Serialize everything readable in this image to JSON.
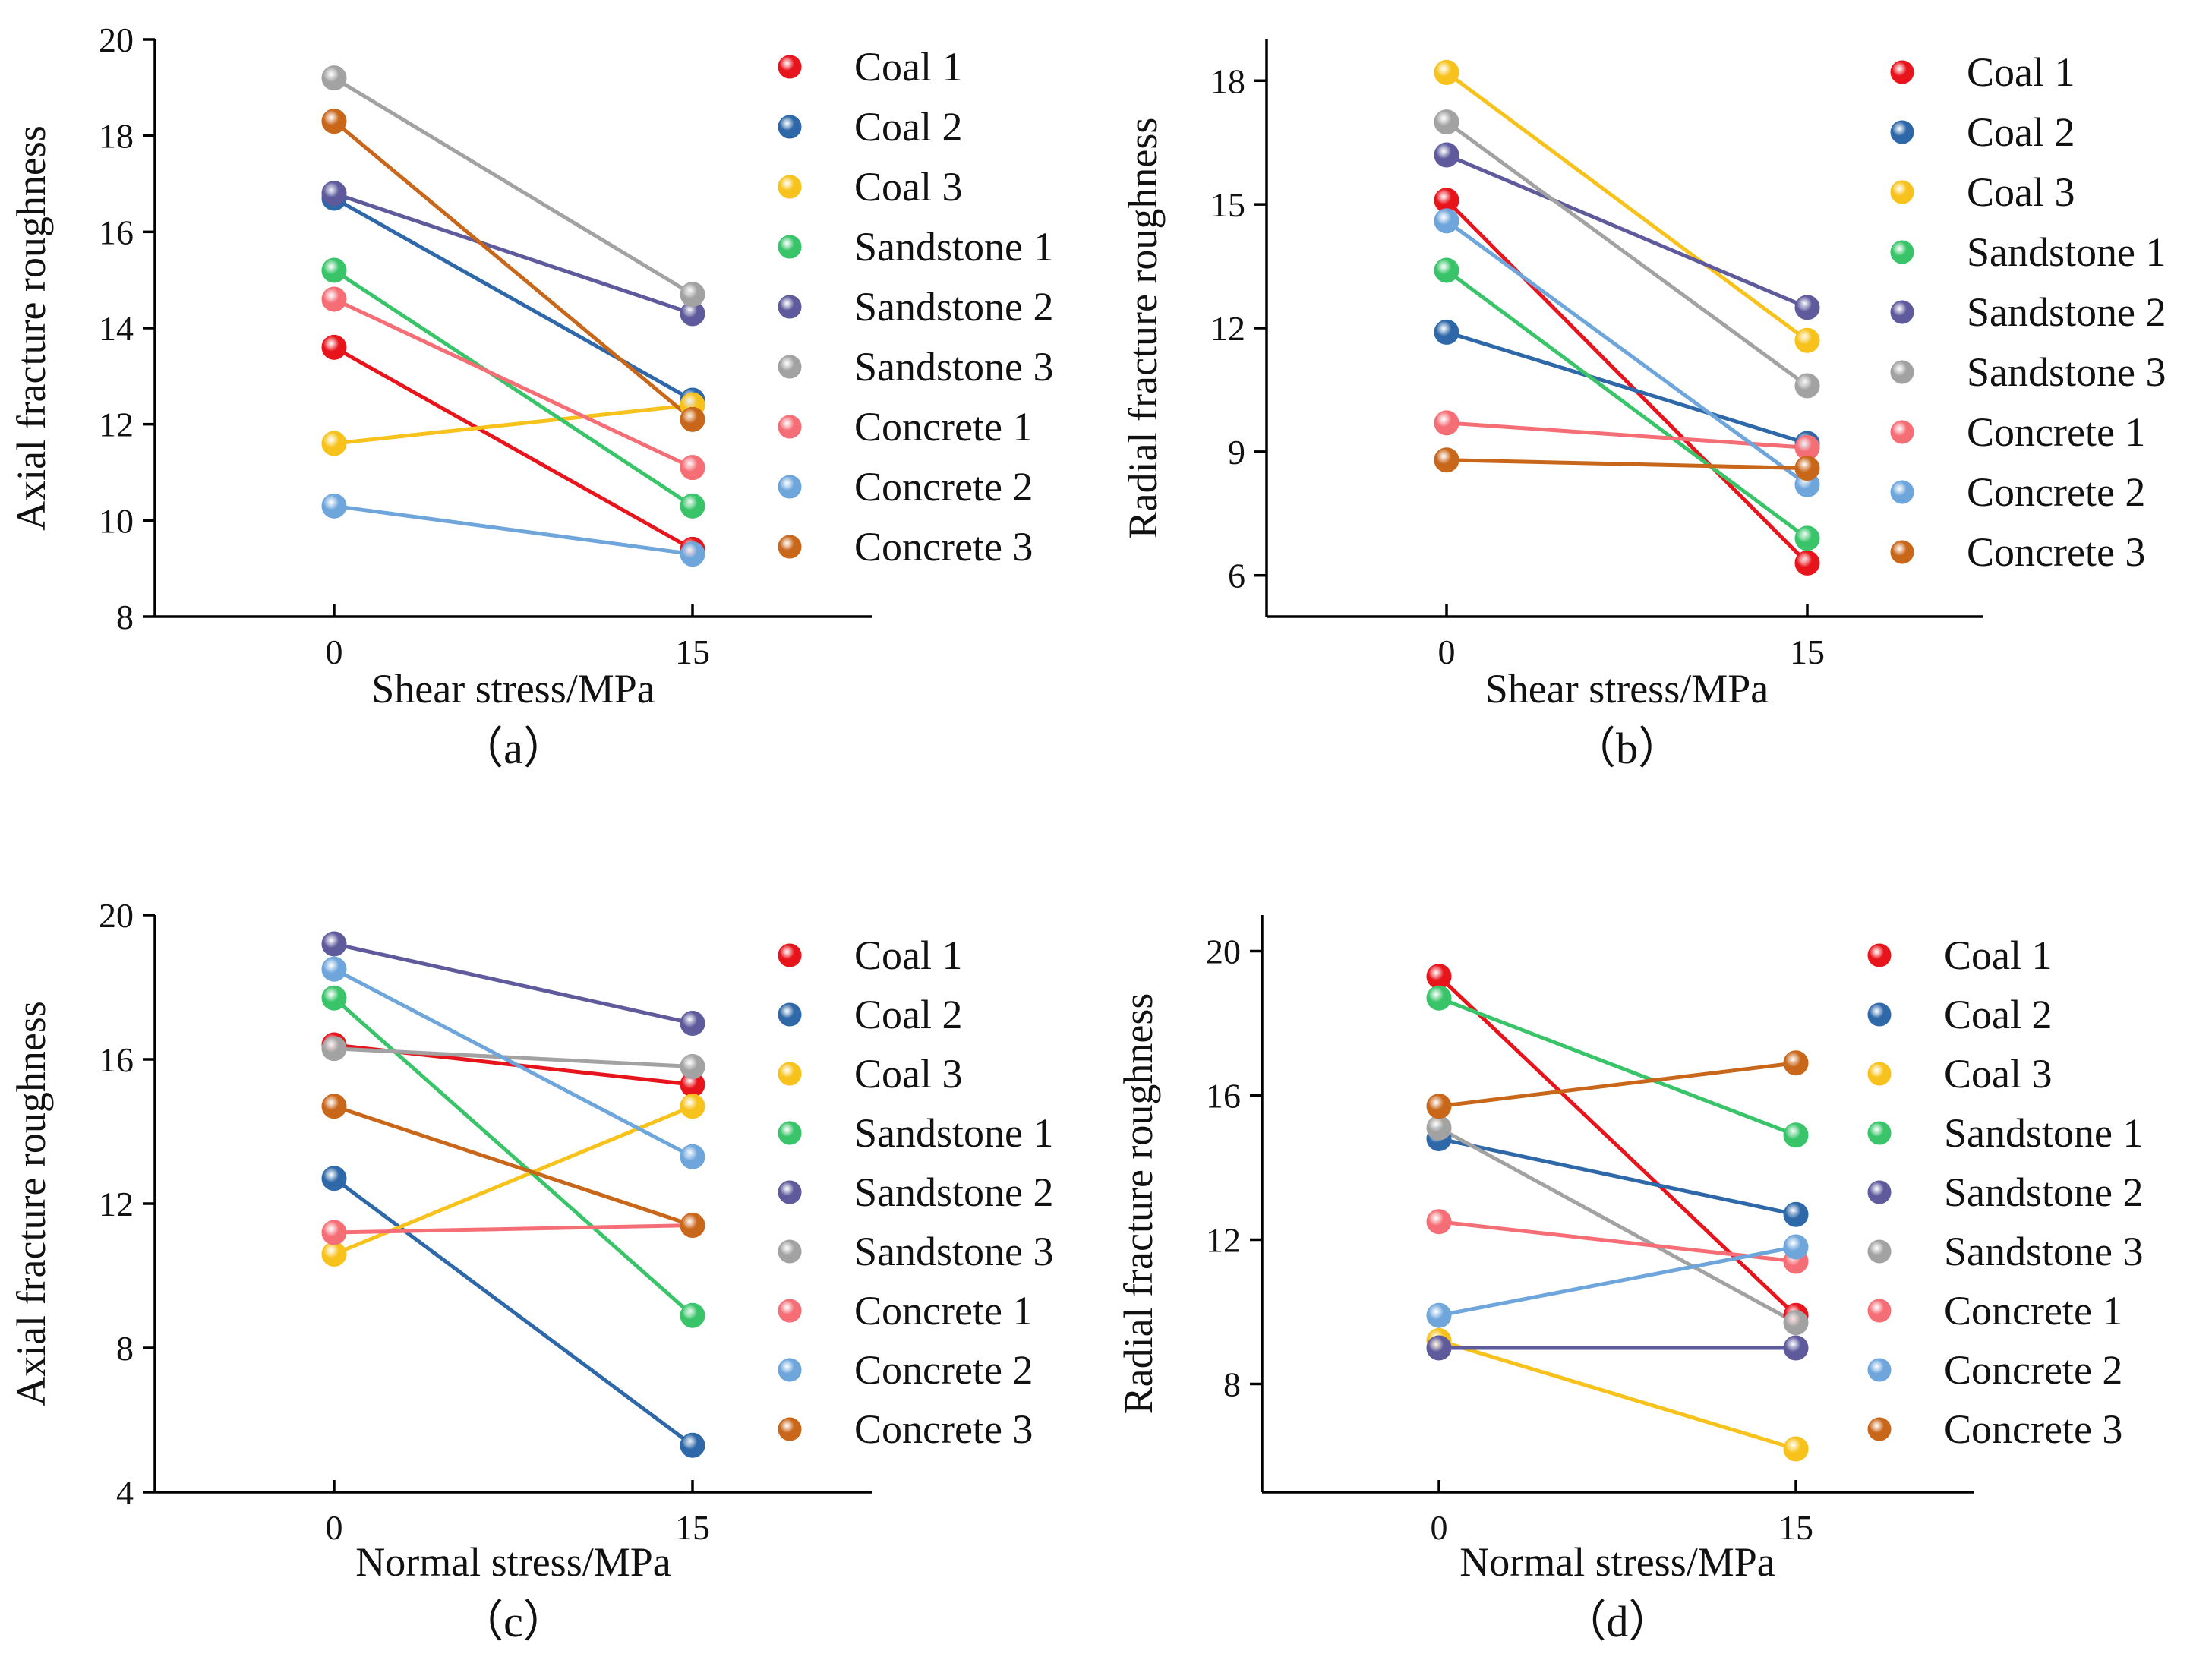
{
  "series_style": {
    "colors": {
      "Coal 1": "#e8141c",
      "Coal 2": "#2e68a8",
      "Coal 3": "#f7c21c",
      "Sandstone 1": "#39c46a",
      "Sandstone 2": "#5e5a9c",
      "Sandstone 3": "#a2a2a2",
      "Concrete 1": "#f56e76",
      "Concrete 2": "#6ea6dc",
      "Concrete 3": "#c8661a"
    }
  },
  "chart_data": [
    {
      "id": "a",
      "panel_label": "（a）",
      "type": "line",
      "xlabel": "Shear stress/MPa",
      "ylabel": "Axial fracture roughness",
      "categories": [
        "0",
        "15"
      ],
      "ylim": [
        8,
        20
      ],
      "yticks": [
        8,
        10,
        12,
        14,
        16,
        18,
        20
      ],
      "legend_position": "right",
      "series": [
        {
          "name": "Coal 1",
          "values": [
            13.6,
            9.4
          ]
        },
        {
          "name": "Coal 2",
          "values": [
            16.7,
            12.5
          ]
        },
        {
          "name": "Coal 3",
          "values": [
            11.6,
            12.4
          ]
        },
        {
          "name": "Sandstone 1",
          "values": [
            15.2,
            10.3
          ]
        },
        {
          "name": "Sandstone 2",
          "values": [
            16.8,
            14.3
          ]
        },
        {
          "name": "Sandstone 3",
          "values": [
            19.2,
            14.7
          ]
        },
        {
          "name": "Concrete 1",
          "values": [
            14.6,
            11.1
          ]
        },
        {
          "name": "Concrete 2",
          "values": [
            10.3,
            9.3
          ]
        },
        {
          "name": "Concrete 3",
          "values": [
            18.3,
            12.1
          ]
        }
      ]
    },
    {
      "id": "b",
      "panel_label": "（b）",
      "type": "line",
      "xlabel": "Shear stress/MPa",
      "ylabel": "Radial fracture roughness",
      "categories": [
        "0",
        "15"
      ],
      "ylim": [
        5,
        19
      ],
      "yticks": [
        6,
        9,
        12,
        15,
        18
      ],
      "legend_position": "right",
      "series": [
        {
          "name": "Coal 1",
          "values": [
            15.1,
            6.3
          ]
        },
        {
          "name": "Coal 2",
          "values": [
            11.9,
            9.2
          ]
        },
        {
          "name": "Coal 3",
          "values": [
            18.2,
            11.7
          ]
        },
        {
          "name": "Sandstone 1",
          "values": [
            13.4,
            6.9
          ]
        },
        {
          "name": "Sandstone 2",
          "values": [
            16.2,
            12.5
          ]
        },
        {
          "name": "Sandstone 3",
          "values": [
            17.0,
            10.6
          ]
        },
        {
          "name": "Concrete 1",
          "values": [
            9.7,
            9.1
          ]
        },
        {
          "name": "Concrete 2",
          "values": [
            14.6,
            8.2
          ]
        },
        {
          "name": "Concrete 3",
          "values": [
            8.8,
            8.6
          ]
        }
      ]
    },
    {
      "id": "c",
      "panel_label": "（c）",
      "type": "line",
      "xlabel": "Normal stress/MPa",
      "ylabel": "Axial fracture roughness",
      "categories": [
        "0",
        "15"
      ],
      "ylim": [
        4,
        20
      ],
      "yticks": [
        4,
        8,
        12,
        16,
        20
      ],
      "legend_position": "right",
      "series": [
        {
          "name": "Coal 1",
          "values": [
            16.4,
            15.3
          ]
        },
        {
          "name": "Coal 2",
          "values": [
            12.7,
            5.3
          ]
        },
        {
          "name": "Coal 3",
          "values": [
            10.6,
            14.7
          ]
        },
        {
          "name": "Sandstone 1",
          "values": [
            17.7,
            8.9
          ]
        },
        {
          "name": "Sandstone 2",
          "values": [
            19.2,
            17.0
          ]
        },
        {
          "name": "Sandstone 3",
          "values": [
            16.3,
            15.8
          ]
        },
        {
          "name": "Concrete 1",
          "values": [
            11.2,
            11.4
          ]
        },
        {
          "name": "Concrete 2",
          "values": [
            18.5,
            13.3
          ]
        },
        {
          "name": "Concrete 3",
          "values": [
            14.7,
            11.4
          ]
        }
      ]
    },
    {
      "id": "d",
      "panel_label": "（d）",
      "type": "line",
      "xlabel": "Normal stress/MPa",
      "ylabel": "Radial fracture roughness",
      "categories": [
        "0",
        "15"
      ],
      "ylim": [
        5,
        21
      ],
      "yticks": [
        8,
        12,
        16,
        20
      ],
      "legend_position": "right",
      "series": [
        {
          "name": "Coal 1",
          "values": [
            19.3,
            9.9
          ]
        },
        {
          "name": "Coal 2",
          "values": [
            14.8,
            12.7
          ]
        },
        {
          "name": "Coal 3",
          "values": [
            9.2,
            6.2
          ]
        },
        {
          "name": "Sandstone 1",
          "values": [
            18.7,
            14.9
          ]
        },
        {
          "name": "Sandstone 2",
          "values": [
            9.0,
            9.0
          ]
        },
        {
          "name": "Sandstone 3",
          "values": [
            15.1,
            9.7
          ]
        },
        {
          "name": "Concrete 1",
          "values": [
            12.5,
            11.4
          ]
        },
        {
          "name": "Concrete 2",
          "values": [
            9.9,
            11.8
          ]
        },
        {
          "name": "Concrete 3",
          "values": [
            15.7,
            16.9
          ]
        }
      ]
    }
  ]
}
